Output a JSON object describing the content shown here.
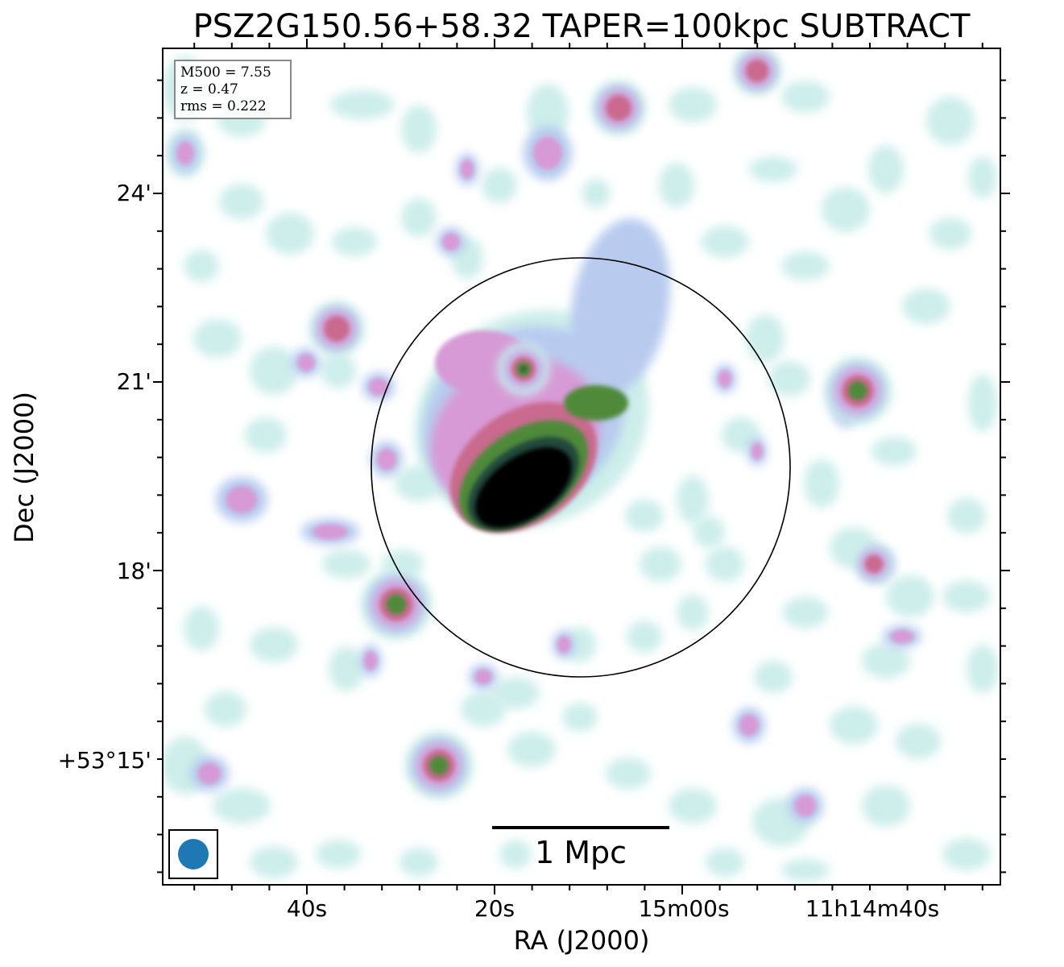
{
  "title": "PSZ2G150.56+58.32 TAPER=100kpc SUBTRACT",
  "info_box": {
    "mass": "M500 = 7.55",
    "redshift": "z = 0.47",
    "rms": "rms = 0.222"
  },
  "axes": {
    "xlabel": "RA (J2000)",
    "ylabel": "Dec (J2000)",
    "ra_ticks": [
      "40s",
      "20s",
      "15m00s",
      "11h14m40s"
    ],
    "dec_ticks": [
      "24'",
      "21'",
      "18'",
      "+53°15'"
    ]
  },
  "scalebar": {
    "label": "1 Mpc"
  },
  "colormap": [
    "#ffffff",
    "#cdeeea",
    "#b8cbef",
    "#d79ad6",
    "#c96a8e",
    "#4f8a3a",
    "#234a3a",
    "#000000"
  ]
}
